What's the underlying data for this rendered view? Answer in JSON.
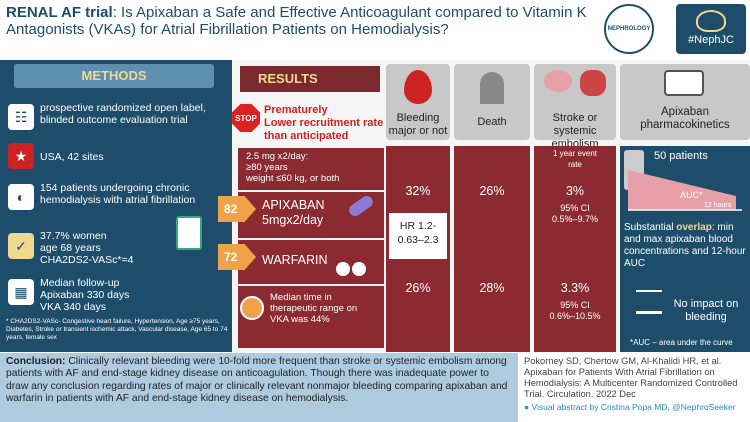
{
  "header": {
    "title_bold": "RENAL AF trial",
    "title_rest": ": Is Apixaban a Safe and Effective Anticoagulant compared to Vitamin K Antagonists (VKAs) for Atrial Fibrillation Patients on Hemodialysis?",
    "logo_text": "NEPHROLOGY",
    "tag": "#NephJC"
  },
  "methods": {
    "heading": "METHODS",
    "items": [
      {
        "icon": "clipboard-icon",
        "text": "prospective randomized open label, blinded outcome evaluation trial"
      },
      {
        "icon": "us-flag-icon",
        "text": "USA, 42 sites"
      },
      {
        "icon": "kidney-icon",
        "text": "154 patients undergoing chronic hemodialysis with atrial fibrillation"
      },
      {
        "icon": "checklist-icon",
        "text": "37.7% women\nage 68 years\nCHA2DS2-VASc*=4"
      },
      {
        "icon": "calendar-icon",
        "text": "Median follow-up\nApixaban 330 days\nVKA 340 days"
      }
    ],
    "footnote": "* CHA2DS2-VASc- Congestive heart failure, Hypertension, Age ≥75 years, Diabetes, Stroke or transient ischemic attack, Vascular disease, Age 65 to 74 years, female sex"
  },
  "results": {
    "heading": "RESULTS",
    "stop": "STOP",
    "prematurely": "Prematurely\nLower recruitment rate than anticipated",
    "dose_criteria": "2.5 mg x2/day:\n≥80 years\nweight ≤60 kg, or both",
    "apixaban_n": "82",
    "apixaban_label": "APIXABAN\n5mgx2/day",
    "warfarin_n": "72",
    "warfarin_label": "WARFARIN",
    "ttr_note": "Median time in therapeutic range on VKA was 44%",
    "columns": [
      {
        "label": "Bleeding\nmajor or not",
        "apix": "32%",
        "warf": "26%"
      },
      {
        "label": "Death",
        "apix": "26%",
        "warf": "28%"
      },
      {
        "label": "Stroke or\nsystemic embolism",
        "apix": "3%",
        "warf": "3.3%"
      }
    ],
    "hr": "HR 1.2-\n0.63–2.3",
    "event_rate_label": "1 year event\nrate",
    "ci_apix": "95% CI\n0.5%–9.7%",
    "ci_warf": "95% CI\n0.6%–10.5%",
    "pk": {
      "label": "Apixaban\npharmacokinetics",
      "patients": "50 patients",
      "auc": "AUC*",
      "hours": "12 hours",
      "overlap_bold": "overlap",
      "overlap_pre": "Substantial ",
      "overlap_rest": ": min and max apixaban blood concentrations and 12-hour AUC",
      "no_impact": "No impact on bleeding",
      "auc_note": "*AUC – area under the curve"
    }
  },
  "conclusion": {
    "label": "Conclusion:",
    "text": " Clinically relevant bleeding were 10-fold more frequent than stroke or systemic embolism among patients with AF and end-stage kidney disease on anticoagulation. Though there was inadequate power to draw any conclusion regarding rates of major or clinically relevant nonmajor bleeding comparing apixaban and warfarin in patients with AF and end-stage kidney disease on hemodialysis."
  },
  "citation": {
    "text": "Pokorney SD, Chertow GM, Al-Khalidi HR, et al. Apixaban for Patients With Atrial Fibrillation on Hemodialysis: A Multicenter Randomized Controlled Trial. Circulation. 2022 Dec",
    "credit": "Visual abstract by Cristina Popa MD, @NephroSeeker"
  },
  "colors": {
    "navy": "#1e4d6b",
    "maroon": "#8b2b31",
    "orange": "#f0a24a",
    "light_blue": "#aecbe0"
  }
}
